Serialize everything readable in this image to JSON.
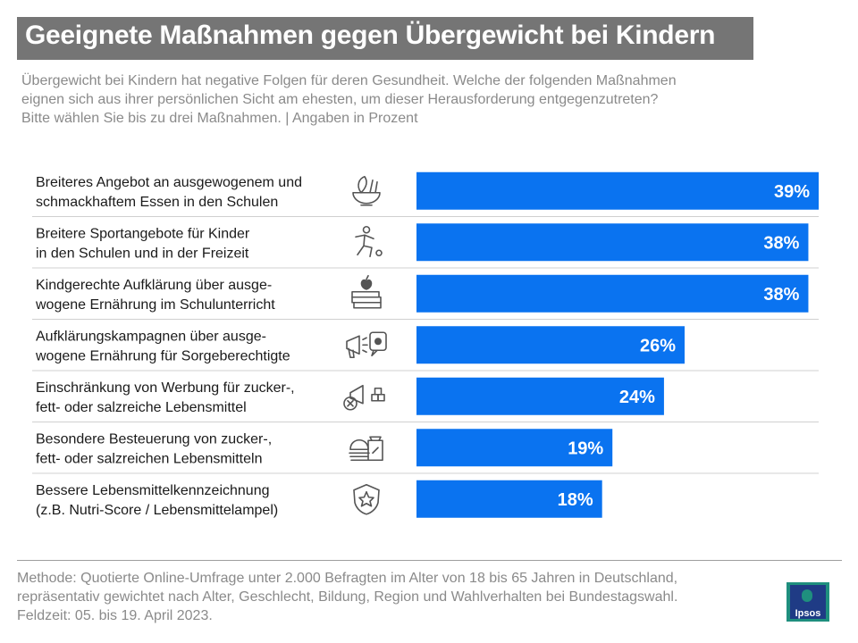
{
  "title": "Geeignete Maßnahmen gegen Übergewicht bei Kindern",
  "subtitle": [
    "Übergewicht bei Kindern hat negative Folgen für deren Gesundheit. Welche der folgenden Maßnahmen",
    "eignen sich aus ihrer persönlichen Sicht am ehesten, um dieser Herausforderung entgegenzutreten?",
    "Bitte wählen Sie bis zu drei Maßnahmen. | Angaben in Prozent"
  ],
  "chart_data": {
    "type": "bar",
    "orientation": "horizontal",
    "unit": "%",
    "categories": [
      [
        "Breiteres Angebot an ausgewogenem und",
        "schmackhaftem Essen in den Schulen"
      ],
      [
        "Breitere Sportangebote für Kinder",
        "in den Schulen und in der Freizeit"
      ],
      [
        "Kindgerechte Aufklärung über ausge-",
        "wogene Ernährung im Schulunterricht"
      ],
      [
        "Aufklärungskampagnen über ausge-",
        "wogene Ernährung für Sorgeberechtigte"
      ],
      [
        "Einschränkung von Werbung für zucker-,",
        "fett- oder salzreiche Lebensmittel"
      ],
      [
        "Besondere Besteuerung von zucker-,",
        "fett- oder salzreichen Lebensmitteln"
      ],
      [
        "Bessere Lebensmittelkennzeichnung",
        "(z.B. Nutri-Score / Lebensmittelampel)"
      ]
    ],
    "values": [
      39,
      38,
      38,
      26,
      24,
      19,
      18
    ],
    "value_labels": [
      "39%",
      "38%",
      "38%",
      "26%",
      "24%",
      "19%",
      "18%"
    ],
    "icons": [
      "salad-bowl-icon",
      "running-child-icon",
      "apple-books-icon",
      "megaphone-apple-icon",
      "no-advertising-icon",
      "food-tax-icon",
      "star-badge-icon"
    ],
    "xlim": [
      0,
      39
    ],
    "bar_color": "#0a73f0",
    "label_color": "#ffffff"
  },
  "footer": [
    "Methode: Quotierte Online-Umfrage unter 2.000 Befragten im Alter von 18 bis 65 Jahren in Deutschland,",
    "repräsentativ gewichtet nach Alter, Geschlecht, Bildung, Region und Wahlverhalten bei Bundestagswahl.",
    "Feldzeit: 05. bis 19. April 2023."
  ],
  "logo": {
    "text": "Ipsos"
  }
}
